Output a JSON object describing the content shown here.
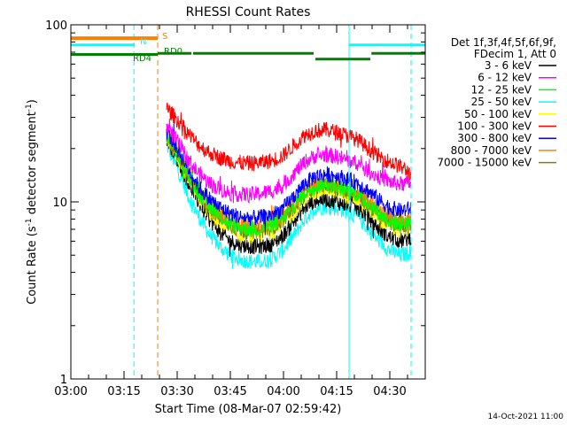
{
  "chart_data": {
    "type": "line",
    "title": "RHESSI Count Rates",
    "xlabel": "Start Time (08-Mar-07 02:59:42)",
    "ylabel_main": "Count Rate (s",
    "ylabel_sup1": "-1",
    "ylabel_mid": " detector segment",
    "ylabel_sup2": "-1",
    "ylabel_end": ")",
    "yscale": "log",
    "ylim": [
      1,
      100
    ],
    "xlim_minutes": [
      0,
      100
    ],
    "x_ticks": [
      {
        "label": "03:00",
        "minute": 0
      },
      {
        "label": "03:15",
        "minute": 15
      },
      {
        "label": "03:30",
        "minute": 30
      },
      {
        "label": "03:45",
        "minute": 45
      },
      {
        "label": "04:00",
        "minute": 60
      },
      {
        "label": "04:15",
        "minute": 75
      },
      {
        "label": "04:30",
        "minute": 90
      }
    ],
    "y_ticks": [
      {
        "label": "1",
        "value": 1
      },
      {
        "label": "10",
        "value": 10
      },
      {
        "label": "100",
        "value": 100
      }
    ],
    "legend_title_1": "Det 1f,3f,4f,5f,6f,9f,",
    "legend_title_2": "FDecim 1, Att 0",
    "x_minutes": [
      27,
      30,
      33,
      36,
      39,
      42,
      45,
      48,
      51,
      54,
      57,
      60,
      63,
      66,
      69,
      72,
      75,
      78,
      81,
      84,
      87,
      90,
      93,
      96
    ],
    "series": [
      {
        "name": "3 - 6 keV",
        "color": "#000000",
        "values": [
          23,
          17.5,
          13,
          10,
          8,
          6.8,
          6,
          5.7,
          5.6,
          5.6,
          5.8,
          6.5,
          7.8,
          9.3,
          10.2,
          10.3,
          10,
          9.6,
          9.2,
          8.2,
          7,
          6.3,
          6,
          6.3
        ]
      },
      {
        "name": "6 - 12 keV",
        "color": "#ff00ff",
        "values": [
          27,
          22,
          17.5,
          14.5,
          12.8,
          11.8,
          11.2,
          11,
          11,
          11.2,
          11.6,
          12.4,
          14.5,
          16.8,
          18.2,
          18.5,
          18,
          17.2,
          16.5,
          15,
          13.8,
          13,
          12.6,
          12.8
        ]
      },
      {
        "name": "12 - 25 keV",
        "color": "#00ff00",
        "values": [
          24,
          19,
          14.5,
          11.3,
          9.5,
          8.3,
          7.5,
          7.1,
          7,
          7.1,
          7.4,
          8.1,
          9.5,
          11.2,
          12.4,
          12.6,
          12.2,
          11.6,
          11,
          9.8,
          8.6,
          7.8,
          7.5,
          7.8
        ]
      },
      {
        "name": "25 - 50 keV",
        "color": "#00ffff",
        "values": [
          21,
          15.5,
          11,
          8.3,
          6.6,
          5.6,
          5,
          4.7,
          4.6,
          4.6,
          4.8,
          5.4,
          6.5,
          8,
          9.2,
          9.5,
          9.2,
          8.8,
          8.2,
          7,
          6,
          5.3,
          5,
          5.2
        ]
      },
      {
        "name": "50 - 100 keV",
        "color": "#ffff00",
        "values": [
          23,
          18,
          13.5,
          10.5,
          8.7,
          7.5,
          6.8,
          6.5,
          6.4,
          6.5,
          6.8,
          7.5,
          8.8,
          10.4,
          11.6,
          11.8,
          11.4,
          10.8,
          10.2,
          9.1,
          8,
          7.2,
          6.9,
          7.2
        ]
      },
      {
        "name": "100 - 300 keV",
        "color": "#ff0000",
        "values": [
          34,
          29,
          24.5,
          21,
          19,
          17.8,
          17,
          16.6,
          16.5,
          16.7,
          17.2,
          18.3,
          21,
          23.8,
          25.3,
          25.5,
          24.8,
          23.7,
          22.4,
          20,
          18,
          16.8,
          15.8,
          14.5
        ]
      },
      {
        "name": "300 - 800 keV",
        "color": "#0000ff",
        "values": [
          25,
          20,
          15.5,
          12.2,
          10.5,
          9.3,
          8.6,
          8.2,
          8.1,
          8.2,
          8.5,
          9.2,
          10.8,
          12.7,
          14,
          14.3,
          14,
          13.4,
          12.8,
          11.5,
          10.2,
          9.3,
          8.9,
          9.2
        ]
      },
      {
        "name": "800 - 7000 keV",
        "color": "#ff8000",
        "values": [
          24,
          19.5,
          14.8,
          11.6,
          9.8,
          8.6,
          7.8,
          7.4,
          7.3,
          7.4,
          7.7,
          8.4,
          9.8,
          11.6,
          12.8,
          13,
          12.6,
          12,
          11.4,
          10.2,
          9,
          8.2,
          7.8,
          8.1
        ]
      },
      {
        "name": "7000 - 15000 keV",
        "color": "#808000",
        "values": [
          23.5,
          19,
          14.2,
          11.1,
          9.3,
          8.1,
          7.3,
          6.9,
          6.8,
          6.9,
          7.2,
          7.9,
          9.3,
          11,
          12.2,
          12.4,
          12,
          11.4,
          10.8,
          9.6,
          8.4,
          7.6,
          7.3,
          7.6
        ]
      }
    ],
    "bars": {
      "S": {
        "label": "S",
        "color": "#ff8000",
        "segments": [
          [
            0,
            24.5
          ]
        ]
      },
      "N": {
        "label": "N",
        "color": "#00ffff",
        "segments": [
          [
            0,
            18
          ],
          [
            78.5,
            100
          ]
        ]
      },
      "RD4": {
        "label": "RD4",
        "color": "#008000",
        "segments": [
          [
            0,
            24.5
          ]
        ]
      },
      "RD0": {
        "label": "RD0",
        "color": "#008000",
        "segments": [
          [
            24.5,
            34
          ],
          [
            34.5,
            68.5
          ]
        ]
      },
      "RD_low": {
        "color": "#008000",
        "segments": [
          [
            69,
            84.5
          ]
        ]
      },
      "RD_high": {
        "color": "#008000",
        "segments": [
          [
            84.8,
            100
          ]
        ]
      }
    },
    "vlines": [
      {
        "minute": 0,
        "color": "#00ffff",
        "style": "solid"
      },
      {
        "minute": 17.8,
        "color": "#00ffff",
        "style": "dashed"
      },
      {
        "minute": 24.5,
        "color": "#ff8000",
        "style": "dashed"
      },
      {
        "minute": 78.5,
        "color": "#00ffff",
        "style": "solid"
      },
      {
        "minute": 96,
        "color": "#00ffff",
        "style": "dashed"
      }
    ]
  },
  "timestamp": "14-Oct-2021 11:00"
}
